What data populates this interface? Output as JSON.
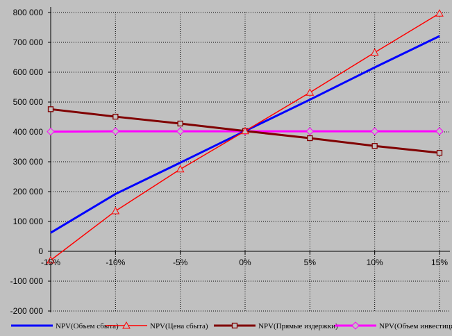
{
  "chart_data": {
    "type": "line",
    "title": "",
    "xlabel": "",
    "ylabel": "",
    "categories": [
      "-15%",
      "-10%",
      "-5%",
      "0%",
      "5%",
      "10%",
      "15%"
    ],
    "x": [
      -15,
      -10,
      -5,
      0,
      5,
      10,
      15
    ],
    "ylim": [
      -200000,
      800000
    ],
    "y_ticks": [
      -200000,
      -100000,
      0,
      100000,
      200000,
      300000,
      400000,
      500000,
      600000,
      700000,
      800000
    ],
    "y_tick_labels": [
      "-200 000",
      "-100 000",
      "0",
      "100 000",
      "200 000",
      "300 000",
      "400 000",
      "500 000",
      "600 000",
      "700 000",
      "800 000"
    ],
    "grid": true,
    "legend_position": "bottom",
    "series": [
      {
        "name": "NPV(Объем сбыта)",
        "color": "#0000ff",
        "marker": "none",
        "values": [
          62000,
          192000,
          297000,
          403000,
          508000,
          616000,
          721000
        ]
      },
      {
        "name": "NPV(Цена сбыта)",
        "color": "#ff0000",
        "marker": "triangle",
        "values": [
          -30000,
          135000,
          275000,
          403000,
          532000,
          666000,
          797000
        ]
      },
      {
        "name": "NPV(Прямые издержки)",
        "color": "#800000",
        "marker": "square",
        "values": [
          476000,
          451000,
          428000,
          403000,
          379000,
          353000,
          330000
        ]
      },
      {
        "name": "NPV(Объем инвестиций)",
        "color": "#ff00ff",
        "marker": "diamond",
        "values": [
          401000,
          402000,
          402000,
          402000,
          402000,
          402000,
          402000
        ]
      }
    ]
  }
}
